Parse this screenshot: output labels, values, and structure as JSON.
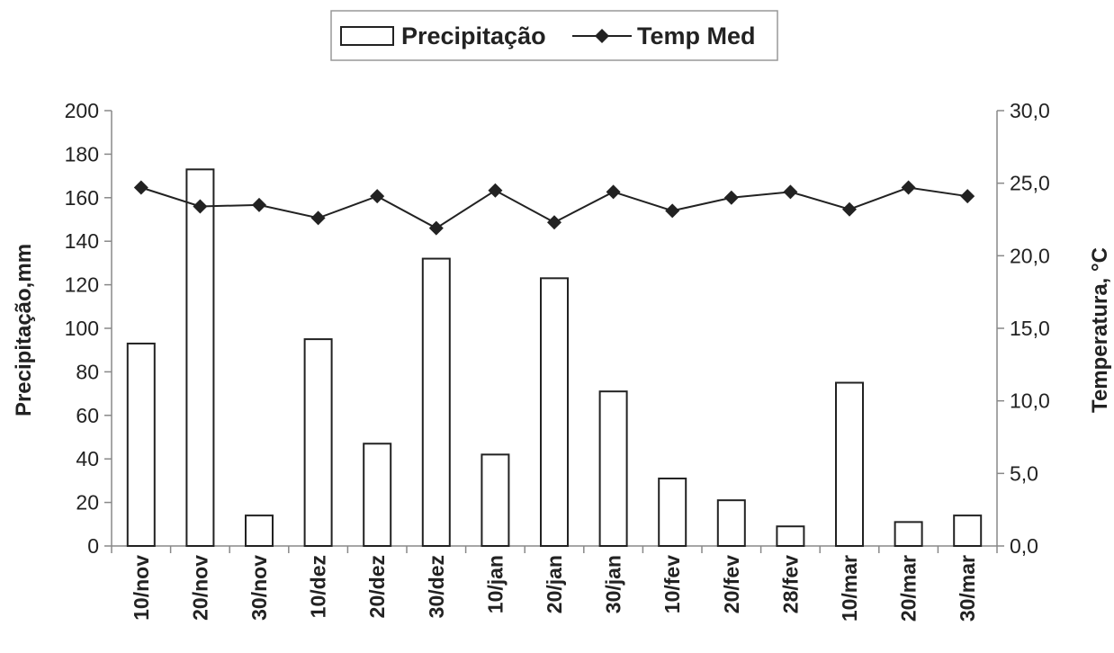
{
  "chart_data": {
    "type": "bar+line",
    "categories": [
      "10/nov",
      "20/nov",
      "30/nov",
      "10/dez",
      "20/dez",
      "30/dez",
      "10/jan",
      "20/jan",
      "30/jan",
      "10/fev",
      "20/fev",
      "28/fev",
      "10/mar",
      "20/mar",
      "30/mar"
    ],
    "series": [
      {
        "name": "Precipitação",
        "type": "bar",
        "axis": "left",
        "values": [
          93,
          173,
          14,
          95,
          47,
          132,
          42,
          123,
          71,
          31,
          21,
          9,
          75,
          11,
          14
        ]
      },
      {
        "name": "Temp Med",
        "type": "line",
        "axis": "right",
        "marker": "diamond",
        "values": [
          24.7,
          23.4,
          23.5,
          22.6,
          24.1,
          21.9,
          24.5,
          22.3,
          24.4,
          23.1,
          24.0,
          24.4,
          23.2,
          24.7,
          24.1
        ]
      }
    ],
    "ylabel": "Precipitação,mm",
    "y2label": "Temperatura,  °C",
    "ylim": [
      0,
      200
    ],
    "y2lim": [
      0,
      30
    ],
    "yticks": [
      "0",
      "20",
      "40",
      "60",
      "80",
      "100",
      "120",
      "140",
      "160",
      "180",
      "200"
    ],
    "y2ticks": [
      "0,0",
      "5,0",
      "10,0",
      "15,0",
      "20,0",
      "25,0",
      "30,0"
    ],
    "grid": false,
    "legend_position": "top-center",
    "colors": {
      "bar_fill": "#ffffff",
      "bar_stroke": "#222222",
      "line": "#222222",
      "axis": "#888888"
    }
  }
}
